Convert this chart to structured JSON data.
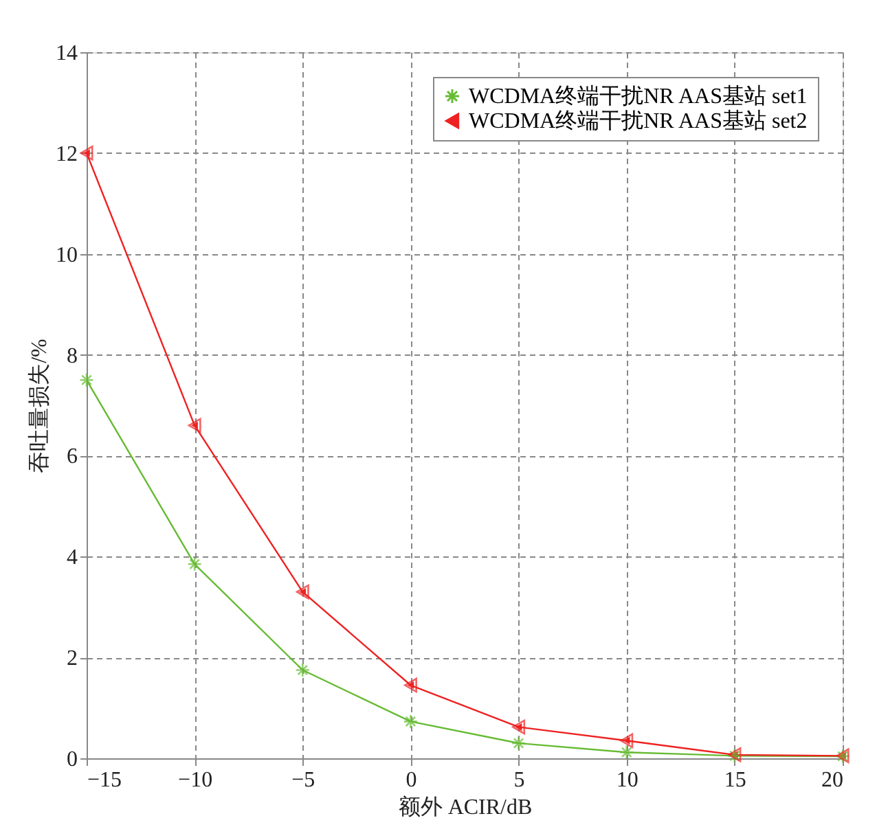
{
  "chart_data": {
    "type": "line",
    "xlabel": "额外 ACIR/dB",
    "ylabel": "吞吐量损失/%",
    "x": [
      -15,
      -10,
      -5,
      0,
      5,
      10,
      15,
      20
    ],
    "series": [
      {
        "name": "WCDMA终端干扰NR AAS基站 set1",
        "color": "#66bb33",
        "marker": "cross",
        "values": [
          7.5,
          3.85,
          1.75,
          0.73,
          0.3,
          0.12,
          0.05,
          0.04
        ]
      },
      {
        "name": "WCDMA终端干扰NR AAS基站 set2",
        "color": "#ee2222",
        "marker": "triangle",
        "values": [
          12.0,
          6.6,
          3.3,
          1.45,
          0.62,
          0.35,
          0.07,
          0.05
        ]
      }
    ],
    "xlim": [
      -15,
      20
    ],
    "xticks": [
      -15,
      -10,
      -5,
      0,
      5,
      10,
      15,
      20
    ],
    "ylim": [
      0,
      14
    ],
    "yticks": [
      0,
      2,
      4,
      6,
      8,
      10,
      12,
      14
    ],
    "grid": true,
    "legend": "top right",
    "line_style": "solid"
  }
}
